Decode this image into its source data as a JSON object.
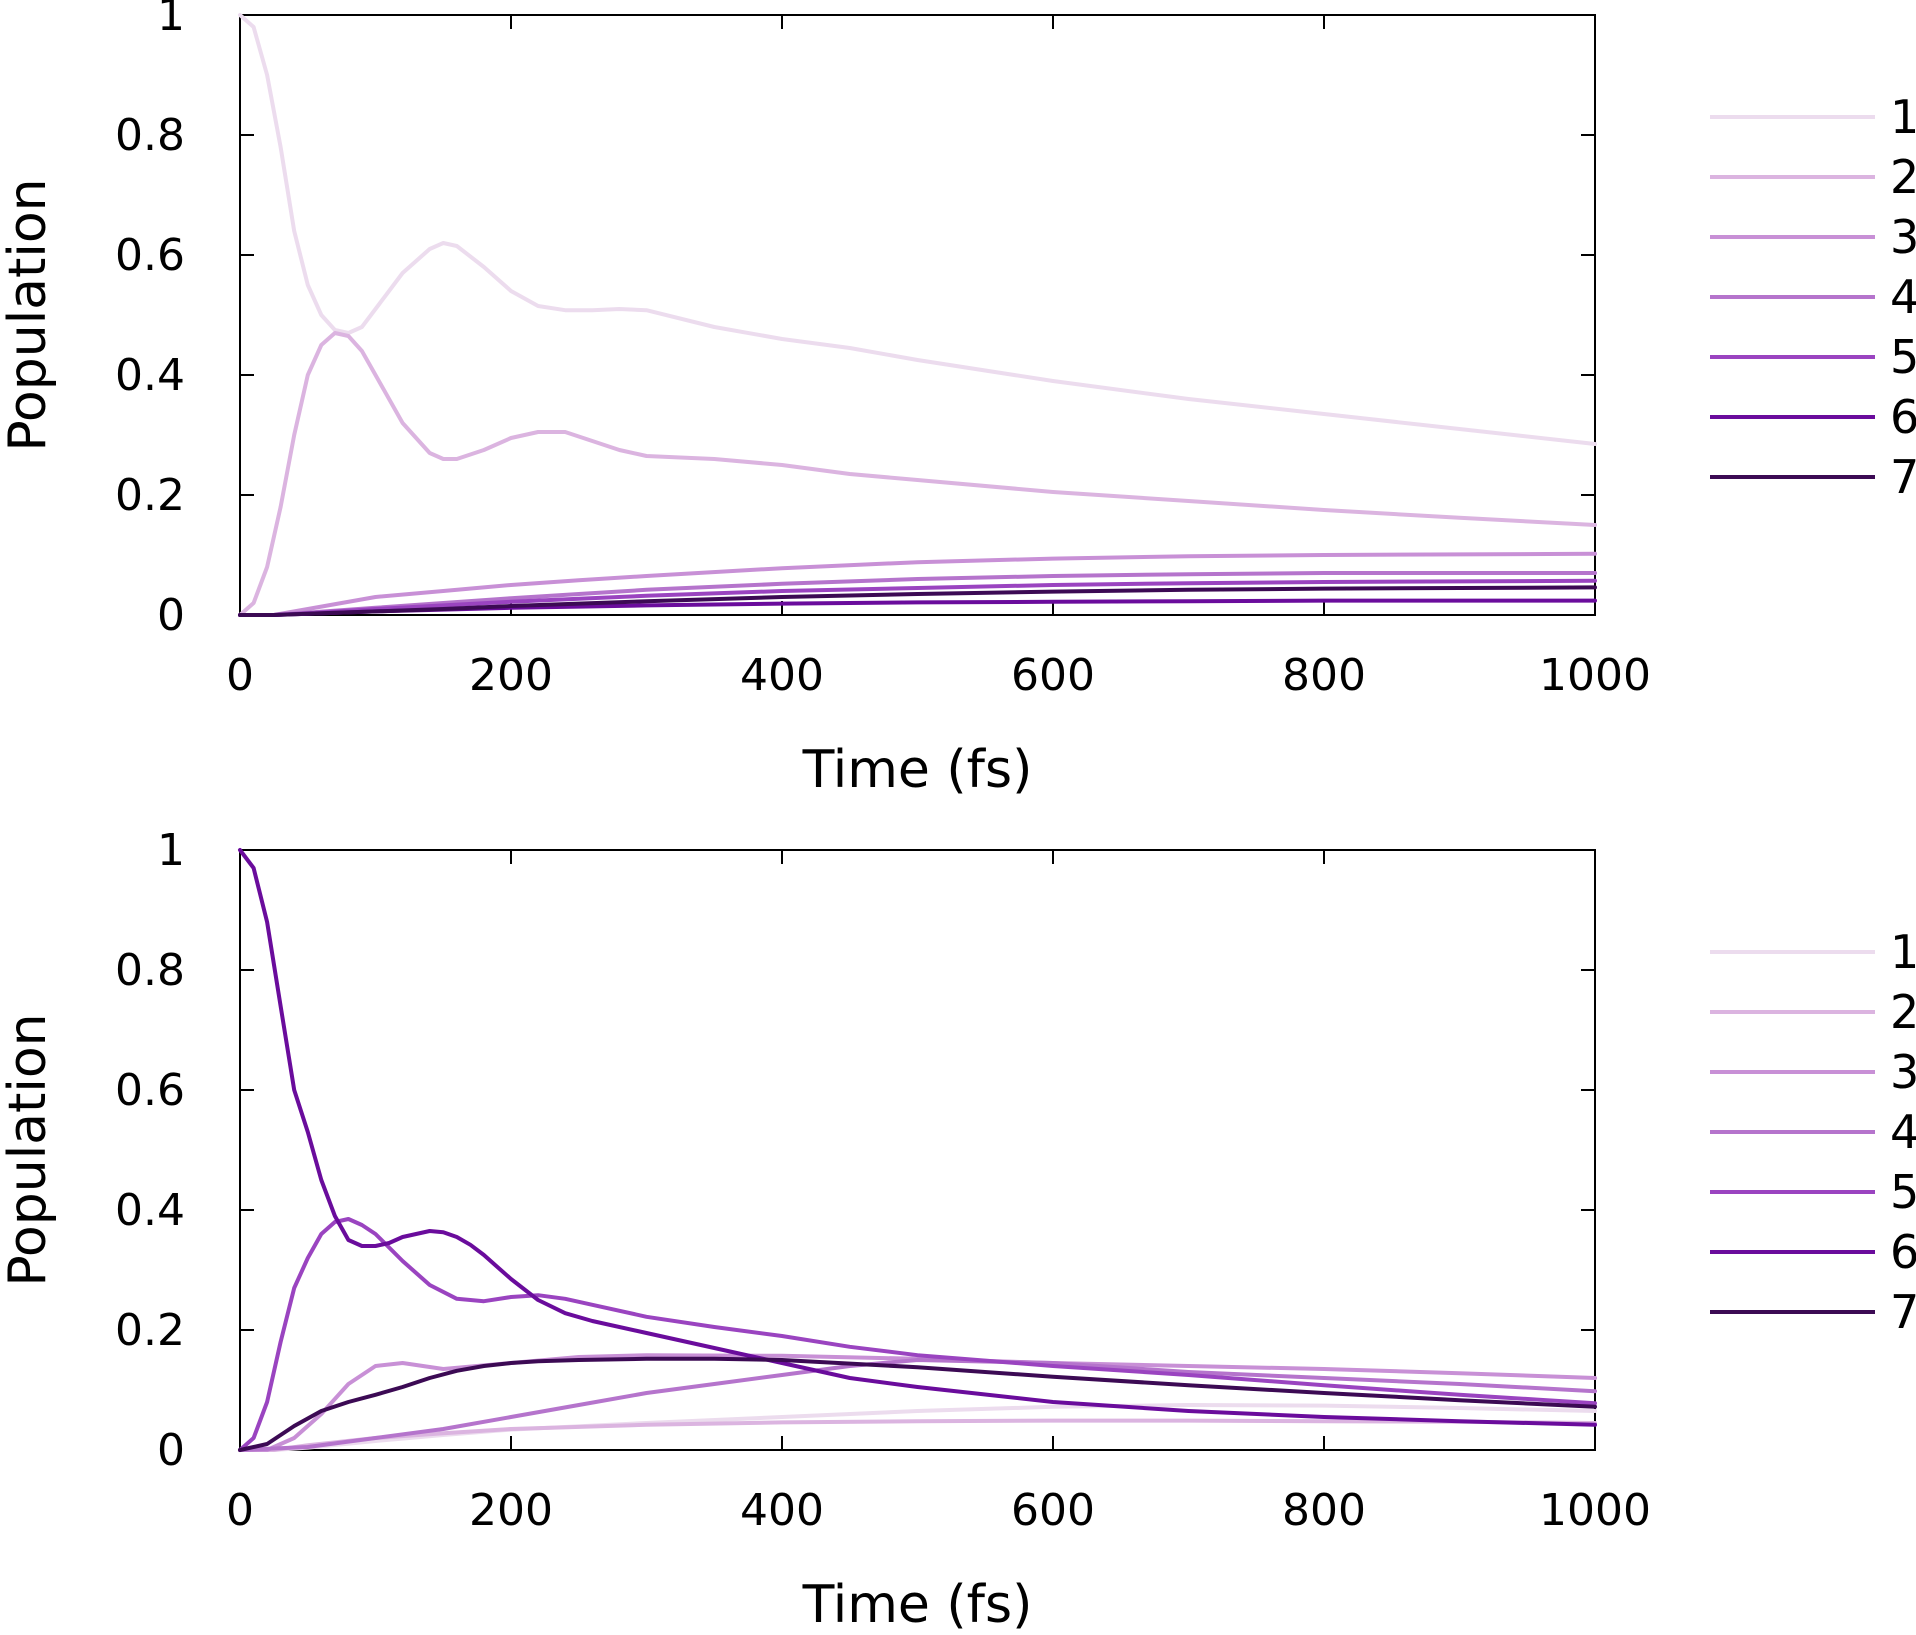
{
  "colors": [
    "#ecdcee",
    "#dbb4e0",
    "#c890d6",
    "#b574cc",
    "#9a44c0",
    "#6a0c9c",
    "#3c0a54"
  ],
  "chart_data": [
    {
      "type": "line",
      "xlabel": "Time (fs)",
      "ylabel": "Population",
      "xlim": [
        0,
        1000
      ],
      "ylim": [
        0,
        1
      ],
      "xticks": [
        "0",
        "200",
        "400",
        "600",
        "800",
        "1000"
      ],
      "yticks": [
        "0",
        "0.2",
        "0.4",
        "0.6",
        "0.8",
        "1"
      ],
      "legend_position": "right",
      "series": [
        {
          "name": "1",
          "x": [
            0,
            10,
            20,
            30,
            40,
            50,
            60,
            70,
            80,
            90,
            100,
            120,
            140,
            150,
            160,
            180,
            200,
            220,
            240,
            260,
            280,
            300,
            350,
            400,
            450,
            500,
            600,
            700,
            800,
            900,
            1000
          ],
          "y": [
            1.0,
            0.98,
            0.9,
            0.78,
            0.64,
            0.55,
            0.5,
            0.475,
            0.47,
            0.48,
            0.51,
            0.57,
            0.61,
            0.62,
            0.615,
            0.58,
            0.54,
            0.515,
            0.508,
            0.508,
            0.51,
            0.508,
            0.48,
            0.46,
            0.445,
            0.425,
            0.39,
            0.36,
            0.335,
            0.31,
            0.285
          ]
        },
        {
          "name": "2",
          "x": [
            0,
            10,
            20,
            30,
            40,
            50,
            60,
            70,
            80,
            90,
            100,
            120,
            140,
            150,
            160,
            180,
            200,
            220,
            240,
            260,
            280,
            300,
            350,
            400,
            450,
            500,
            600,
            700,
            800,
            900,
            1000
          ],
          "y": [
            0.0,
            0.02,
            0.08,
            0.18,
            0.3,
            0.4,
            0.45,
            0.47,
            0.465,
            0.44,
            0.4,
            0.32,
            0.27,
            0.26,
            0.26,
            0.275,
            0.295,
            0.305,
            0.305,
            0.29,
            0.275,
            0.265,
            0.26,
            0.25,
            0.235,
            0.225,
            0.205,
            0.19,
            0.175,
            0.162,
            0.15
          ]
        },
        {
          "name": "3",
          "x": [
            0,
            25,
            50,
            100,
            150,
            200,
            250,
            300,
            400,
            500,
            600,
            700,
            800,
            900,
            1000
          ],
          "y": [
            0.0,
            0.0,
            0.01,
            0.03,
            0.04,
            0.05,
            0.058,
            0.065,
            0.078,
            0.088,
            0.094,
            0.098,
            0.1,
            0.101,
            0.102
          ]
        },
        {
          "name": "4",
          "x": [
            0,
            25,
            50,
            100,
            150,
            200,
            250,
            300,
            400,
            500,
            600,
            700,
            800,
            900,
            1000
          ],
          "y": [
            0.0,
            0.0,
            0.004,
            0.012,
            0.02,
            0.028,
            0.035,
            0.042,
            0.052,
            0.06,
            0.065,
            0.068,
            0.07,
            0.07,
            0.07
          ]
        },
        {
          "name": "5",
          "x": [
            0,
            25,
            50,
            100,
            150,
            200,
            250,
            300,
            400,
            500,
            600,
            700,
            800,
            900,
            1000
          ],
          "y": [
            0.0,
            0.0,
            0.003,
            0.01,
            0.016,
            0.022,
            0.027,
            0.032,
            0.04,
            0.045,
            0.05,
            0.053,
            0.055,
            0.056,
            0.057
          ]
        },
        {
          "name": "6",
          "x": [
            0,
            25,
            50,
            100,
            150,
            200,
            250,
            300,
            400,
            500,
            600,
            700,
            800,
            900,
            1000
          ],
          "y": [
            0.0,
            0.0,
            0.002,
            0.006,
            0.009,
            0.012,
            0.014,
            0.016,
            0.019,
            0.021,
            0.022,
            0.023,
            0.024,
            0.024,
            0.024
          ]
        },
        {
          "name": "7",
          "x": [
            0,
            25,
            50,
            100,
            150,
            200,
            250,
            300,
            400,
            500,
            600,
            700,
            800,
            900,
            1000
          ],
          "y": [
            0.0,
            0.0,
            0.002,
            0.006,
            0.01,
            0.015,
            0.019,
            0.023,
            0.03,
            0.035,
            0.039,
            0.042,
            0.044,
            0.045,
            0.046
          ]
        }
      ]
    },
    {
      "type": "line",
      "xlabel": "Time (fs)",
      "ylabel": "Population",
      "xlim": [
        0,
        1000
      ],
      "ylim": [
        0,
        1
      ],
      "xticks": [
        "0",
        "200",
        "400",
        "600",
        "800",
        "1000"
      ],
      "yticks": [
        "0",
        "0.2",
        "0.4",
        "0.6",
        "0.8",
        "1"
      ],
      "legend_position": "right",
      "series": [
        {
          "name": "1",
          "x": [
            0,
            25,
            50,
            100,
            150,
            200,
            300,
            400,
            500,
            600,
            700,
            800,
            900,
            1000
          ],
          "y": [
            0.0,
            0.0,
            0.004,
            0.015,
            0.025,
            0.034,
            0.045,
            0.055,
            0.065,
            0.072,
            0.075,
            0.074,
            0.07,
            0.065
          ]
        },
        {
          "name": "2",
          "x": [
            0,
            25,
            50,
            100,
            150,
            200,
            300,
            400,
            500,
            600,
            700,
            800,
            900,
            1000
          ],
          "y": [
            0.0,
            0.0,
            0.008,
            0.02,
            0.028,
            0.035,
            0.042,
            0.046,
            0.048,
            0.049,
            0.049,
            0.048,
            0.047,
            0.045
          ]
        },
        {
          "name": "3",
          "x": [
            0,
            20,
            40,
            60,
            80,
            100,
            120,
            150,
            200,
            250,
            300,
            400,
            500,
            600,
            700,
            800,
            900,
            1000
          ],
          "y": [
            0.0,
            0.0,
            0.02,
            0.06,
            0.11,
            0.14,
            0.145,
            0.135,
            0.145,
            0.155,
            0.158,
            0.157,
            0.152,
            0.145,
            0.14,
            0.135,
            0.128,
            0.12
          ]
        },
        {
          "name": "4",
          "x": [
            0,
            50,
            100,
            150,
            200,
            250,
            300,
            350,
            400,
            450,
            500,
            600,
            700,
            800,
            900,
            1000
          ],
          "y": [
            0.0,
            0.005,
            0.02,
            0.035,
            0.055,
            0.075,
            0.095,
            0.11,
            0.125,
            0.14,
            0.15,
            0.145,
            0.13,
            0.12,
            0.11,
            0.098
          ]
        },
        {
          "name": "5",
          "x": [
            0,
            10,
            20,
            30,
            40,
            50,
            60,
            70,
            80,
            90,
            100,
            120,
            140,
            160,
            180,
            200,
            220,
            240,
            260,
            300,
            350,
            400,
            450,
            500,
            600,
            700,
            800,
            900,
            1000
          ],
          "y": [
            0.0,
            0.02,
            0.08,
            0.18,
            0.27,
            0.32,
            0.36,
            0.38,
            0.385,
            0.375,
            0.36,
            0.315,
            0.275,
            0.252,
            0.248,
            0.255,
            0.258,
            0.252,
            0.242,
            0.222,
            0.205,
            0.19,
            0.172,
            0.158,
            0.14,
            0.125,
            0.108,
            0.092,
            0.078
          ]
        },
        {
          "name": "6",
          "x": [
            0,
            10,
            20,
            30,
            40,
            50,
            60,
            70,
            80,
            90,
            100,
            110,
            120,
            130,
            140,
            150,
            160,
            170,
            180,
            190,
            200,
            220,
            240,
            260,
            300,
            350,
            400,
            450,
            500,
            600,
            700,
            800,
            900,
            1000
          ],
          "y": [
            1.0,
            0.97,
            0.88,
            0.74,
            0.6,
            0.53,
            0.45,
            0.39,
            0.35,
            0.34,
            0.34,
            0.345,
            0.355,
            0.36,
            0.365,
            0.363,
            0.355,
            0.342,
            0.325,
            0.305,
            0.285,
            0.25,
            0.228,
            0.215,
            0.195,
            0.17,
            0.145,
            0.12,
            0.105,
            0.08,
            0.065,
            0.055,
            0.048,
            0.042
          ]
        },
        {
          "name": "7",
          "x": [
            0,
            20,
            40,
            60,
            80,
            100,
            120,
            140,
            160,
            180,
            200,
            220,
            250,
            300,
            350,
            400,
            500,
            600,
            700,
            800,
            900,
            1000
          ],
          "y": [
            0.0,
            0.01,
            0.04,
            0.065,
            0.08,
            0.092,
            0.105,
            0.12,
            0.132,
            0.14,
            0.145,
            0.148,
            0.15,
            0.152,
            0.152,
            0.15,
            0.138,
            0.122,
            0.108,
            0.095,
            0.083,
            0.072
          ]
        }
      ]
    }
  ]
}
